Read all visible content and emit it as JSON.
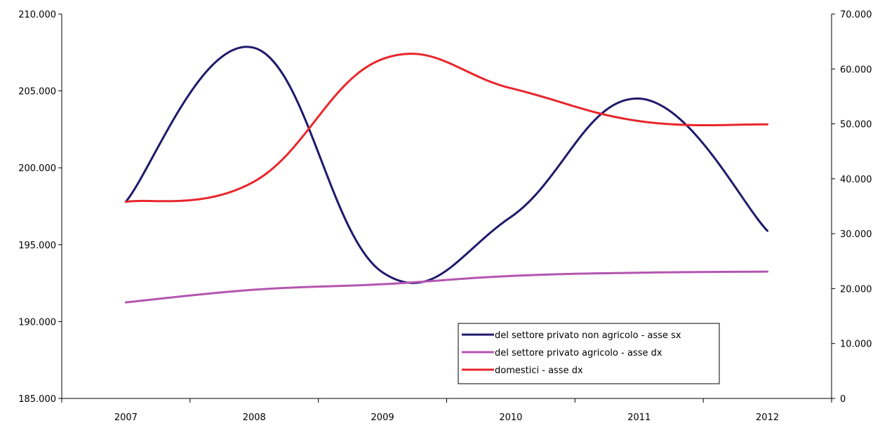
{
  "chart_data": {
    "type": "line",
    "categories": [
      "2007",
      "2008",
      "2009",
      "2010",
      "2011",
      "2012"
    ],
    "axes": {
      "left": {
        "min": 185000,
        "max": 210000,
        "step": 5000,
        "tick_labels": [
          "185.000",
          "190.000",
          "195.000",
          "200.000",
          "205.000",
          "210.000"
        ]
      },
      "right": {
        "min": 0,
        "max": 70000,
        "step": 10000,
        "tick_labels": [
          "0",
          "10.000",
          "20.000",
          "30.000",
          "40.000",
          "50.000",
          "60.000",
          "70.000"
        ]
      }
    },
    "grid": false,
    "legend_position": "bottom-right",
    "series": [
      {
        "name": "del settore privato non agricolo - asse sx",
        "axis": "left",
        "color": "#1f1a6b",
        "values": [
          197800,
          207800,
          193200,
          196800,
          204500,
          195900
        ]
      },
      {
        "name": "del settore privato agricolo - asse dx",
        "axis": "right",
        "color": "#b455b0",
        "values": [
          17500,
          19800,
          20800,
          22300,
          22900,
          23100
        ]
      },
      {
        "name": "domestici - asse dx",
        "axis": "right",
        "color": "#e8262c",
        "values": [
          35800,
          39500,
          61800,
          56500,
          50500,
          49900
        ]
      }
    ]
  }
}
